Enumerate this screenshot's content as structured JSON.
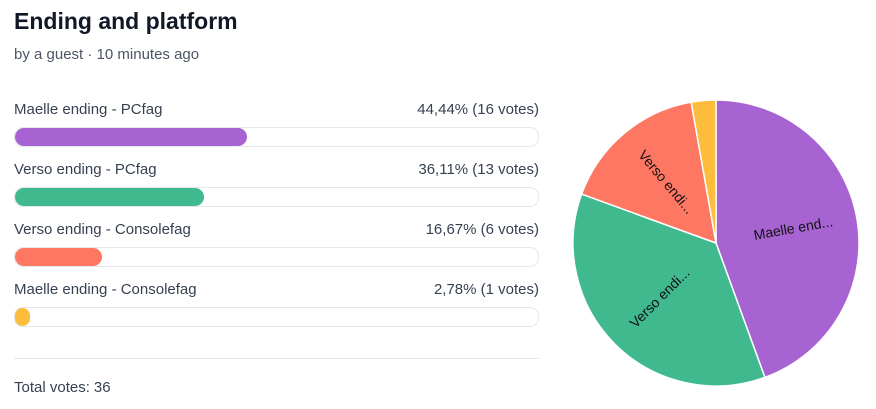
{
  "title": "Ending and platform",
  "byline": "by a guest · 10 minutes ago",
  "options": [
    {
      "name": "Maelle ending - PCfag",
      "value_label": "44,44% (16 votes)",
      "percent": 44.44,
      "votes": 16,
      "color": "#a763d1"
    },
    {
      "name": "Verso ending - PCfag",
      "value_label": "36,11% (13 votes)",
      "percent": 36.11,
      "votes": 13,
      "color": "#40b98f"
    },
    {
      "name": "Verso ending - Consolefag",
      "value_label": "16,67% (6 votes)",
      "percent": 16.67,
      "votes": 6,
      "color": "#fd7762"
    },
    {
      "name": "Maelle ending - Consolefag",
      "value_label": "2,78% (1 votes)",
      "percent": 2.78,
      "votes": 1,
      "color": "#fbbd3b"
    }
  ],
  "pie_labels": [
    "Maelle end...",
    "Verso endi...",
    "Verso endi...",
    null
  ],
  "total_label": "Total votes:",
  "total": 36
}
